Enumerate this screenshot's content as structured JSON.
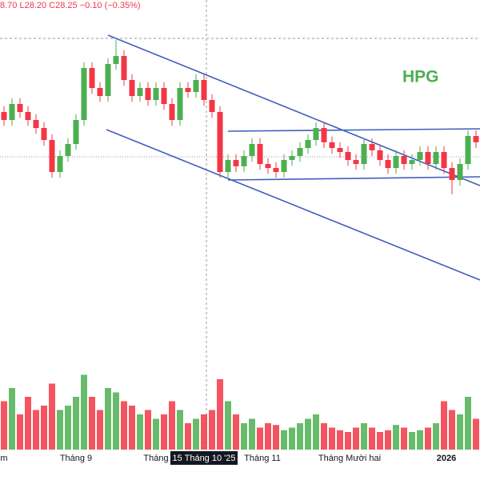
{
  "chart_data": {
    "type": "candlestick",
    "legend_text": "8.70  L28.20  C28.25  −0.10 (−0.35%)",
    "watermark": "HPG",
    "x_labels": [
      "m",
      "Tháng 9",
      "Tháng",
      "Tháng 11",
      "Tháng Mười hai",
      "2026"
    ],
    "crosshair_label": "15 Tháng 10 '25",
    "up_color": "#4caf50",
    "down_color": "#f23645",
    "ylim": [
      24.84,
      31.0
    ],
    "volume_ylim": [
      0,
      100
    ],
    "open": [
      29.04,
      28.9,
      29.18,
      29.04,
      28.9,
      28.76,
      28.55,
      27.99,
      28.27,
      28.48,
      28.9,
      29.81,
      29.46,
      29.32,
      29.88,
      30.02,
      29.6,
      29.32,
      29.46,
      29.25,
      29.46,
      29.18,
      28.9,
      29.46,
      29.39,
      29.6,
      29.25,
      29.04,
      27.99,
      28.2,
      28.09,
      28.27,
      28.48,
      28.13,
      28.06,
      27.99,
      28.2,
      28.27,
      28.41,
      28.55,
      28.76,
      28.51,
      28.41,
      28.34,
      28.2,
      28.13,
      28.48,
      28.37,
      28.2,
      28.06,
      28.27,
      28.13,
      28.2,
      28.34,
      28.13,
      28.34,
      28.06,
      27.85,
      28.13,
      28.62
    ],
    "high": [
      29.14,
      29.28,
      29.28,
      29.14,
      29.0,
      28.86,
      28.65,
      28.37,
      28.58,
      29.0,
      29.91,
      29.91,
      29.56,
      29.98,
      30.3,
      30.12,
      29.7,
      29.56,
      29.56,
      29.56,
      29.56,
      29.28,
      29.56,
      29.56,
      29.7,
      29.7,
      29.35,
      29.14,
      28.3,
      28.3,
      28.37,
      28.58,
      28.58,
      28.23,
      28.16,
      28.3,
      28.37,
      28.51,
      28.65,
      28.86,
      28.86,
      28.61,
      28.51,
      28.44,
      28.3,
      28.58,
      28.58,
      28.47,
      28.3,
      28.37,
      28.37,
      28.3,
      28.44,
      28.44,
      28.44,
      28.44,
      28.16,
      28.23,
      28.72,
      28.72
    ],
    "low": [
      28.8,
      28.8,
      28.94,
      28.8,
      28.66,
      28.45,
      27.89,
      27.89,
      28.17,
      28.38,
      28.8,
      29.36,
      29.22,
      29.22,
      29.78,
      29.5,
      29.22,
      29.22,
      29.15,
      29.15,
      29.08,
      28.8,
      28.8,
      29.29,
      29.29,
      29.15,
      28.94,
      27.89,
      27.89,
      27.99,
      27.99,
      28.17,
      28.03,
      27.96,
      27.89,
      27.89,
      28.1,
      28.17,
      28.31,
      28.45,
      28.41,
      28.31,
      28.24,
      28.1,
      28.03,
      28.03,
      28.27,
      28.1,
      27.96,
      27.96,
      28.03,
      28.03,
      28.1,
      28.03,
      28.03,
      27.96,
      27.6,
      27.75,
      28.03,
      28.41
    ],
    "close": [
      28.9,
      29.18,
      29.04,
      28.9,
      28.76,
      28.55,
      27.99,
      28.27,
      28.48,
      28.9,
      29.81,
      29.46,
      29.32,
      29.88,
      30.02,
      29.6,
      29.32,
      29.46,
      29.25,
      29.46,
      29.18,
      28.9,
      29.46,
      29.39,
      29.6,
      29.25,
      29.04,
      27.99,
      28.2,
      28.09,
      28.27,
      28.48,
      28.13,
      28.06,
      27.99,
      28.2,
      28.27,
      28.41,
      28.55,
      28.76,
      28.51,
      28.41,
      28.34,
      28.2,
      28.13,
      28.48,
      28.37,
      28.2,
      28.06,
      28.27,
      28.13,
      28.2,
      28.34,
      28.13,
      28.34,
      28.06,
      27.85,
      28.13,
      28.62,
      28.51
    ],
    "volume": [
      55,
      70,
      40,
      60,
      45,
      50,
      75,
      45,
      50,
      60,
      85,
      60,
      45,
      70,
      65,
      55,
      50,
      40,
      45,
      35,
      40,
      55,
      45,
      30,
      35,
      40,
      45,
      80,
      55,
      40,
      30,
      35,
      25,
      30,
      28,
      22,
      25,
      30,
      35,
      40,
      30,
      25,
      22,
      20,
      25,
      30,
      25,
      20,
      22,
      28,
      25,
      20,
      22,
      25,
      30,
      55,
      45,
      40,
      60,
      35
    ]
  }
}
